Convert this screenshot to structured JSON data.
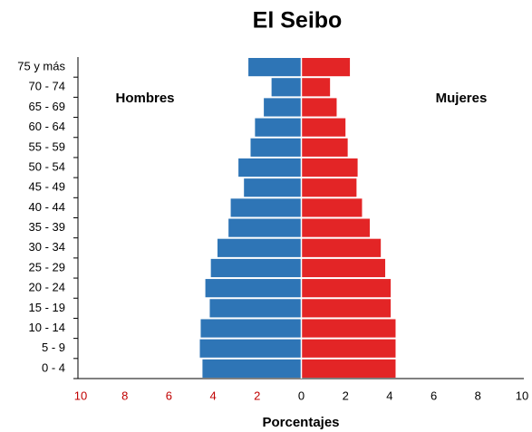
{
  "chart_data": {
    "type": "pyramid",
    "title": "El Seibo",
    "xlabel": "Porcentajes",
    "categories": [
      "0 - 4",
      "5 - 9",
      "10 - 14",
      "15 - 19",
      "20 - 24",
      "25 - 29",
      "30 - 34",
      "35 - 39",
      "40 - 44",
      "45 - 49",
      "50 - 54",
      "55 - 59",
      "60 - 64",
      "65 - 69",
      "70 - 74",
      "75 y más"
    ],
    "series": [
      {
        "name": "Hombres",
        "color": "#2e75b6",
        "side": "left",
        "values": [
          4.48,
          4.6,
          4.56,
          4.15,
          4.35,
          4.1,
          3.8,
          3.3,
          3.2,
          2.6,
          2.85,
          2.3,
          2.1,
          1.7,
          1.35,
          2.4
        ]
      },
      {
        "name": "Mujeres",
        "color": "#e32526",
        "side": "right",
        "values": [
          4.27,
          4.27,
          4.27,
          4.05,
          4.05,
          3.8,
          3.6,
          3.1,
          2.75,
          2.5,
          2.55,
          2.1,
          2.0,
          1.6,
          1.3,
          2.2
        ]
      }
    ],
    "xlim": [
      -10,
      10
    ],
    "xticks": [
      {
        "value": -10,
        "label": "10"
      },
      {
        "value": -8,
        "label": "8"
      },
      {
        "value": -6,
        "label": "6"
      },
      {
        "value": -4,
        "label": "4"
      },
      {
        "value": -2,
        "label": "2"
      },
      0,
      2,
      4,
      6,
      8,
      10
    ],
    "negative_tick_color": "#c00000",
    "grid": false
  }
}
